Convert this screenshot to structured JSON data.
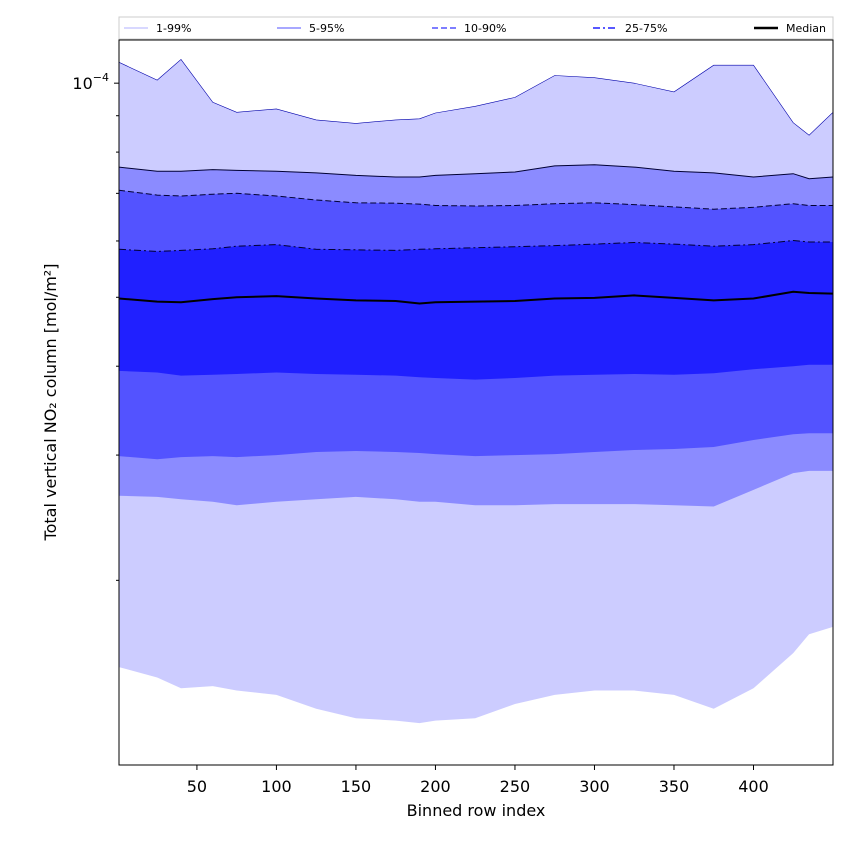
{
  "chart_data": {
    "type": "area",
    "xlabel": "Binned row index",
    "ylabel": "Total vertical NO₂ column [mol/m²]",
    "xlim": [
      1,
      450
    ],
    "ylim": [
      1.1e-05,
      0.000115
    ],
    "yscale": "log",
    "x_ticks": [
      50,
      100,
      150,
      200,
      250,
      300,
      350,
      400
    ],
    "y_tick_labels": [
      {
        "value": 0.0001,
        "base": "10",
        "exp": "−4"
      }
    ],
    "y_minor_ticks": [
      2e-05,
      3e-05,
      4e-05,
      5e-05,
      6e-05,
      7e-05,
      8e-05,
      9e-05
    ],
    "grid": false,
    "legend_position": "top",
    "legend": [
      {
        "label": "1-99%",
        "style": "solid",
        "color": "#ccccff"
      },
      {
        "label": "5-95%",
        "style": "solid",
        "color": "#8b8bff"
      },
      {
        "label": "10-90%",
        "style": "dashed",
        "color": "#5353ff"
      },
      {
        "label": "25-75%",
        "style": "dashdot",
        "color": "#2020ff"
      },
      {
        "label": "Median",
        "style": "solid",
        "color": "#000000"
      }
    ],
    "x": [
      1,
      25,
      40,
      60,
      75,
      100,
      125,
      150,
      175,
      190,
      200,
      225,
      250,
      275,
      300,
      325,
      350,
      375,
      400,
      425,
      435,
      450
    ],
    "series": [
      {
        "name": "1-99%",
        "lower": [
          1.51e-05,
          1.46e-05,
          1.41e-05,
          1.42e-05,
          1.4e-05,
          1.38e-05,
          1.32e-05,
          1.28e-05,
          1.27e-05,
          1.26e-05,
          1.27e-05,
          1.28e-05,
          1.34e-05,
          1.38e-05,
          1.4e-05,
          1.4e-05,
          1.38e-05,
          1.32e-05,
          1.41e-05,
          1.58e-05,
          1.68e-05,
          1.72e-05
        ],
        "upper": [
          0.000107,
          0.000101,
          0.000108,
          9.4e-05,
          9.1e-05,
          9.2e-05,
          8.88e-05,
          8.78e-05,
          8.88e-05,
          8.91e-05,
          9.08e-05,
          9.28e-05,
          9.55e-05,
          0.0001025,
          0.0001018,
          0.0001,
          9.72e-05,
          0.000106,
          0.000106,
          8.8e-05,
          8.45e-05,
          9.1e-05
        ]
      },
      {
        "name": "5-95%",
        "lower": [
          2.63e-05,
          2.62e-05,
          2.6e-05,
          2.58e-05,
          2.55e-05,
          2.58e-05,
          2.6e-05,
          2.62e-05,
          2.6e-05,
          2.58e-05,
          2.58e-05,
          2.55e-05,
          2.55e-05,
          2.56e-05,
          2.56e-05,
          2.56e-05,
          2.55e-05,
          2.54e-05,
          2.68e-05,
          2.83e-05,
          2.85e-05,
          2.85e-05
        ],
        "upper": [
          7.62e-05,
          7.52e-05,
          7.52e-05,
          7.56e-05,
          7.54e-05,
          7.52e-05,
          7.48e-05,
          7.42e-05,
          7.38e-05,
          7.38e-05,
          7.42e-05,
          7.46e-05,
          7.5e-05,
          7.65e-05,
          7.68e-05,
          7.62e-05,
          7.52e-05,
          7.48e-05,
          7.38e-05,
          7.46e-05,
          7.34e-05,
          7.38e-05
        ]
      },
      {
        "name": "10-90%",
        "lower": [
          2.99e-05,
          2.96e-05,
          2.98e-05,
          2.99e-05,
          2.98e-05,
          3e-05,
          3.03e-05,
          3.04e-05,
          3.03e-05,
          3.02e-05,
          3.01e-05,
          2.99e-05,
          3e-05,
          3.01e-05,
          3.03e-05,
          3.05e-05,
          3.06e-05,
          3.08e-05,
          3.15e-05,
          3.21e-05,
          3.22e-05,
          3.22e-05
        ],
        "upper": [
          7.07e-05,
          6.96e-05,
          6.94e-05,
          6.98e-05,
          7e-05,
          6.94e-05,
          6.85e-05,
          6.79e-05,
          6.78e-05,
          6.76e-05,
          6.73e-05,
          6.72e-05,
          6.73e-05,
          6.77e-05,
          6.79e-05,
          6.75e-05,
          6.7e-05,
          6.65e-05,
          6.69e-05,
          6.77e-05,
          6.73e-05,
          6.73e-05
        ]
      },
      {
        "name": "25-75%",
        "lower": [
          3.94e-05,
          3.92e-05,
          3.88e-05,
          3.89e-05,
          3.9e-05,
          3.92e-05,
          3.9e-05,
          3.89e-05,
          3.88e-05,
          3.86e-05,
          3.85e-05,
          3.83e-05,
          3.85e-05,
          3.88e-05,
          3.89e-05,
          3.9e-05,
          3.89e-05,
          3.91e-05,
          3.96e-05,
          4e-05,
          4.02e-05,
          4.02e-05
        ],
        "upper": [
          5.84e-05,
          5.8e-05,
          5.82e-05,
          5.85e-05,
          5.9e-05,
          5.93e-05,
          5.84e-05,
          5.83e-05,
          5.82e-05,
          5.84e-05,
          5.85e-05,
          5.87e-05,
          5.89e-05,
          5.91e-05,
          5.94e-05,
          5.97e-05,
          5.94e-05,
          5.9e-05,
          5.93e-05,
          6.01e-05,
          5.98e-05,
          5.98e-05
        ]
      },
      {
        "name": "Median",
        "values": [
          4.98e-05,
          4.93e-05,
          4.92e-05,
          4.97e-05,
          5e-05,
          5.02e-05,
          4.98e-05,
          4.95e-05,
          4.94e-05,
          4.9e-05,
          4.92e-05,
          4.93e-05,
          4.94e-05,
          4.98e-05,
          4.99e-05,
          5.03e-05,
          4.99e-05,
          4.95e-05,
          4.98e-05,
          5.09e-05,
          5.07e-05,
          5.06e-05
        ]
      }
    ]
  }
}
